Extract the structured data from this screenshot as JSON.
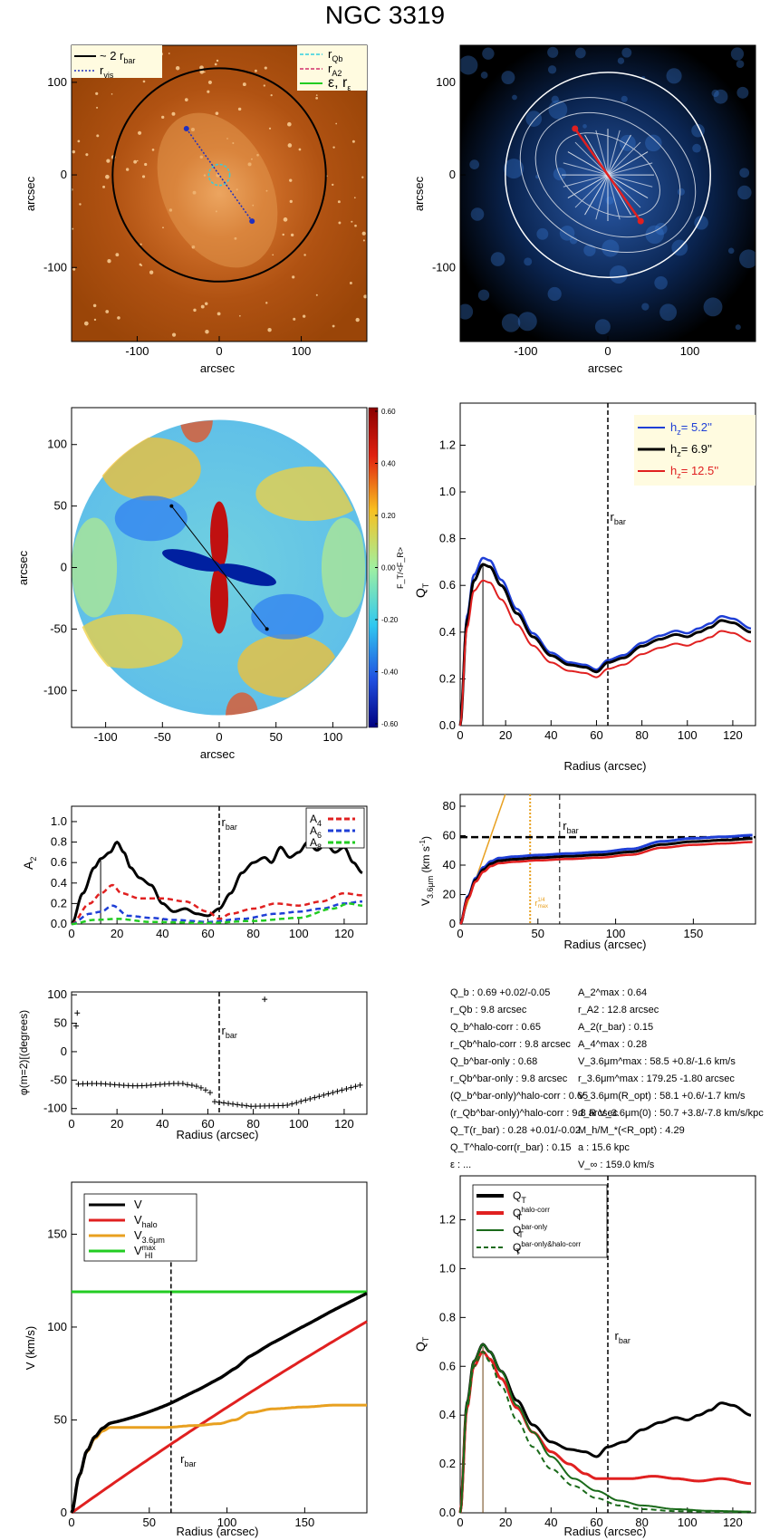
{
  "title": "NGC 3319",
  "colors": {
    "black": "#000000",
    "blue": "#1f3fd6",
    "red": "#e02020",
    "orange": "#e8a020",
    "green": "#22cc22",
    "darkgreen": "#1a6a1a",
    "cyan": "#30d0e0",
    "magenta": "#d0306a",
    "dotblue": "#2030c0"
  },
  "panels": {
    "image": {
      "xlabel": "arcsec",
      "ylabel": "arcsec",
      "xticks": [
        "-100",
        "0",
        "100"
      ],
      "yticks": [
        "100",
        "0",
        "-100"
      ],
      "legend_left": [
        "~ 2 r",
        "bar",
        "r",
        "vis"
      ],
      "legend_right": [
        "r",
        "Qb",
        "r",
        "A2",
        "ε, r",
        "ε"
      ]
    },
    "contour": {
      "xlabel": "arcsec",
      "ylabel": "arcsec",
      "xticks": [
        "-100",
        "0",
        "100"
      ],
      "yticks": [
        "100",
        "0",
        "-100"
      ]
    },
    "forcemap": {
      "xlabel": "arcsec",
      "ylabel": "arcsec",
      "xticks": [
        "-100",
        "-50",
        "0",
        "50",
        "100"
      ],
      "yticks": [
        "100",
        "50",
        "0",
        "-50",
        "-100"
      ],
      "colorbar_ticks": [
        "0.60",
        "0.40",
        "0.20",
        "0.00",
        "-0.20",
        "-0.40",
        "-0.60"
      ],
      "colorbar_label": "F_T/<F_R>"
    },
    "qt": {
      "xlabel": "Radius (arcsec)",
      "ylabel": "Q",
      "ylabel_sub": "T",
      "xticks": [
        "0",
        "20",
        "40",
        "60",
        "80",
        "100",
        "120"
      ],
      "yticks": [
        "0.0",
        "0.2",
        "0.4",
        "0.6",
        "0.8",
        "1.0",
        "1.2"
      ],
      "rbar": "r",
      "rbar_sub": "bar",
      "legend": [
        {
          "lab": "h",
          "sub": "z",
          "val": "=  5.2''",
          "color": "#1f3fd6"
        },
        {
          "lab": "h",
          "sub": "z",
          "val": "=  6.9''",
          "color": "#000000"
        },
        {
          "lab": "h",
          "sub": "z",
          "val": "=  12.5''",
          "color": "#e02020"
        }
      ]
    },
    "a2": {
      "xlabel": "",
      "ylabel": "A",
      "ylabel_sub": "2",
      "xticks": [
        "0",
        "20",
        "40",
        "60",
        "80",
        "100",
        "120"
      ],
      "yticks": [
        "1.0",
        "0.8",
        "0.6",
        "0.4",
        "0.2",
        "0.0"
      ],
      "rbar": "r",
      "rbar_sub": "bar",
      "legend": [
        {
          "lab": "A",
          "sub": "4",
          "color": "#e02020"
        },
        {
          "lab": "A",
          "sub": "6",
          "color": "#1f3fd6"
        },
        {
          "lab": "A",
          "sub": "8",
          "color": "#22cc22"
        }
      ]
    },
    "vel": {
      "xlabel": "Radius (arcsec)",
      "ylabel": "V",
      "ylabel_sub": "3.6μm",
      "ylabel_unit": "(km s",
      "ylabel_sup": "-1",
      "ylabel_close": ")",
      "xticks": [
        "0",
        "50",
        "100",
        "150"
      ],
      "yticks": [
        "80",
        "60",
        "40",
        "20",
        "0"
      ],
      "rbar": "r",
      "rbar_sub": "bar",
      "rmax": "r",
      "rmax_sup": "1/4",
      "rmax_sub": "max"
    },
    "phase": {
      "xlabel": "Radius (arcsec)",
      "ylabel": "φ(m=2)[(degrees)",
      "xticks": [
        "0",
        "20",
        "40",
        "60",
        "80",
        "100",
        "120"
      ],
      "yticks": [
        "100",
        "50",
        "0",
        "-50",
        "-100"
      ],
      "rbar": "r",
      "rbar_sub": "bar"
    },
    "rot": {
      "xlabel": "Radius (arcsec)",
      "ylabel": "V (km/s)",
      "xticks": [
        "0",
        "50",
        "100",
        "150"
      ],
      "yticks": [
        "150",
        "100",
        "50",
        "0"
      ],
      "rbar": "r",
      "rbar_sub": "bar",
      "legend": [
        {
          "lab": "V",
          "sub": "",
          "color": "#000000"
        },
        {
          "lab": "V",
          "sub": "halo",
          "color": "#e02020"
        },
        {
          "lab": "V",
          "sub": "3.6μm",
          "color": "#e8a020"
        },
        {
          "lab": "V",
          "sub": "HI",
          "sup": "max",
          "color": "#22cc22"
        }
      ]
    },
    "qt2": {
      "xlabel": "Radius (arcsec)",
      "ylabel": "Q",
      "ylabel_sub": "T",
      "xticks": [
        "0",
        "20",
        "40",
        "60",
        "80",
        "100",
        "120"
      ],
      "yticks": [
        "0.0",
        "0.2",
        "0.4",
        "0.6",
        "0.8",
        "1.0",
        "1.2"
      ],
      "rbar": "r",
      "rbar_sub": "bar",
      "legend": [
        {
          "lab": "Q",
          "sub": "T",
          "sup": "",
          "color": "#000000"
        },
        {
          "lab": "Q",
          "sub": "T",
          "sup": "halo-corr",
          "color": "#e02020"
        },
        {
          "lab": "Q",
          "sub": "T",
          "sup": "bar-only",
          "color": "#1a6a1a"
        },
        {
          "lab": "Q",
          "sub": "T",
          "sup": "bar-only&halo-corr",
          "color": "#1a6a1a"
        }
      ]
    }
  },
  "stats_left": [
    "Q_b :  0.69 +0.02/-0.05",
    "r_Qb :   9.8  arcsec",
    "Q_b^halo-corr :  0.65",
    "r_Qb^halo-corr :   9.8 arcsec",
    "Q_b^bar-only :  0.68",
    "r_Qb^bar-only :   9.8 arcsec",
    "(Q_b^bar-only)^halo-corr :  0.65",
    "(r_Qb^bar-only)^halo-corr :   9.8 arcsec",
    "Q_T(r_bar) :  0.28 +0.01/-0.02",
    "Q_T^halo-corr(r_bar) :  0.15",
    "ε : ..."
  ],
  "stats_right": [
    "A_2^max :  0.64",
    "r_A2 :  12.8 arcsec",
    "A_2(r_bar) :  0.15",
    "A_4^max :  0.28",
    "V_3.6μm^max :  58.5 +0.8/-1.6 km/s",
    "r_3.6μm^max : 179.25 -1.80 arcsec",
    "V_3.6μm(R_opt) :  58.1 +0.6/-1.7 km/s",
    "d_R V_3.6μm(0) :  50.7 +3.8/-7.8 km/s/kpc",
    "M_h/M_*(<R_opt) :  4.29",
    "a :  15.6 kpc",
    "V_∞ :  159.0 km/s"
  ]
}
